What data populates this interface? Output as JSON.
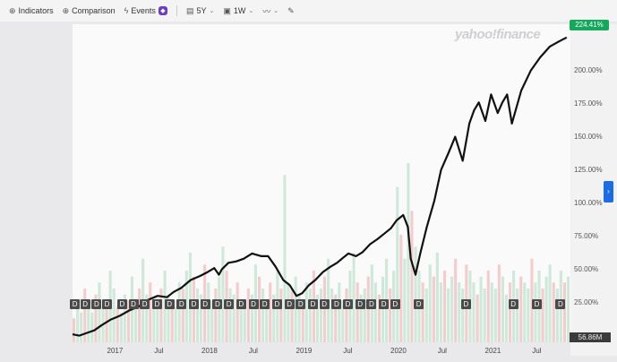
{
  "toolbar": {
    "indicators_label": "Indicators",
    "comparison_label": "Comparison",
    "events_label": "Events",
    "range_label": "5Y",
    "interval_label": "1W"
  },
  "watermark": "yahoo!finance",
  "price_badge": "224.41%",
  "volume_badge": "56.86M",
  "dividend_marker_label": "D",
  "colors": {
    "line": "#111111",
    "price_badge": "#14a85b",
    "side_tab": "#1d6be5",
    "volume_up": "#bfe3cf",
    "volume_down": "#f1bcbc"
  },
  "chart_data": {
    "type": "line",
    "x_ticks": [
      "2017",
      "Jul",
      "2018",
      "Jul",
      "2019",
      "Jul",
      "2020",
      "Jul",
      "2021",
      "Jul"
    ],
    "y_ticks": [
      "25.00%",
      "50.00%",
      "75.00%",
      "100.00%",
      "125.00%",
      "150.00%",
      "175.00%",
      "200.00%"
    ],
    "y_tick_values": [
      25,
      50,
      75,
      100,
      125,
      150,
      175,
      200
    ],
    "ylim": [
      -5,
      235
    ],
    "xlim": [
      2016.55,
      2021.82
    ],
    "series": [
      {
        "x": [
          2016.55,
          2016.62,
          2016.7,
          2016.78,
          2016.86,
          2016.95,
          2017.05,
          2017.15,
          2017.25,
          2017.35,
          2017.45,
          2017.55,
          2017.62,
          2017.7,
          2017.8,
          2017.9,
          2017.98,
          2018.05,
          2018.1,
          2018.13,
          2018.2,
          2018.28,
          2018.36,
          2018.45,
          2018.55,
          2018.62,
          2018.7,
          2018.78,
          2018.85,
          2018.92,
          2018.98,
          2019.05,
          2019.12,
          2019.2,
          2019.28,
          2019.35,
          2019.4,
          2019.47,
          2019.55,
          2019.62,
          2019.7,
          2019.78,
          2019.85,
          2019.92,
          2019.98,
          2020.05,
          2020.1,
          2020.13,
          2020.18,
          2020.23,
          2020.3,
          2020.38,
          2020.45,
          2020.53,
          2020.6,
          2020.68,
          2020.75,
          2020.8,
          2020.85,
          2020.92,
          2020.98,
          2021.05,
          2021.1,
          2021.15,
          2021.2,
          2021.3,
          2021.4,
          2021.5,
          2021.6,
          2021.7,
          2021.78
        ],
        "y": [
          1,
          0,
          2,
          4,
          8,
          12,
          15,
          19,
          22,
          27,
          30,
          29,
          33,
          36,
          42,
          45,
          48,
          51,
          46,
          50,
          55,
          56,
          58,
          62,
          60,
          60,
          52,
          42,
          38,
          30,
          32,
          38,
          42,
          48,
          52,
          55,
          58,
          62,
          60,
          63,
          69,
          73,
          77,
          81,
          87,
          91,
          82,
          58,
          46,
          62,
          82,
          102,
          125,
          138,
          150,
          132,
          160,
          170,
          176,
          162,
          182,
          168,
          176,
          182,
          160,
          185,
          200,
          210,
          218,
          222,
          225
        ]
      }
    ],
    "dividend_markers_x": [
      2016.57,
      2016.68,
      2016.8,
      2016.91,
      2017.07,
      2017.19,
      2017.31,
      2017.44,
      2017.57,
      2017.7,
      2017.83,
      2017.95,
      2018.08,
      2018.2,
      2018.33,
      2018.46,
      2018.58,
      2018.71,
      2018.84,
      2018.96,
      2019.09,
      2019.21,
      2019.34,
      2019.46,
      2019.59,
      2019.71,
      2019.84,
      2019.96,
      2020.21,
      2020.71,
      2021.21,
      2021.46,
      2021.71
    ],
    "volume": [
      4,
      6,
      5,
      9,
      7,
      5,
      8,
      10,
      6,
      7,
      12,
      9,
      6,
      5,
      8,
      7,
      11,
      6,
      9,
      14,
      8,
      10,
      7,
      6,
      9,
      12,
      8,
      7,
      6,
      10,
      9,
      12,
      15,
      11,
      9,
      8,
      13,
      10,
      7,
      9,
      11,
      16,
      12,
      9,
      8,
      10,
      7,
      6,
      9,
      8,
      13,
      11,
      9,
      7,
      10,
      8,
      12,
      9,
      28,
      10,
      9,
      11,
      8,
      7,
      10,
      9,
      12,
      8,
      9,
      11,
      14,
      9,
      8,
      10,
      7,
      9,
      12,
      15,
      10,
      8,
      9,
      11,
      13,
      10,
      8,
      11,
      14,
      9,
      12,
      26,
      18,
      14,
      30,
      22,
      16,
      12,
      10,
      9,
      13,
      11,
      15,
      10,
      12,
      9,
      11,
      14,
      10,
      9,
      13,
      12,
      10,
      8,
      11,
      9,
      12,
      10,
      9,
      13,
      11,
      8,
      10,
      12,
      9,
      11,
      10,
      9,
      14,
      10,
      12,
      9,
      11,
      13,
      10,
      9,
      12,
      10,
      11
    ]
  }
}
